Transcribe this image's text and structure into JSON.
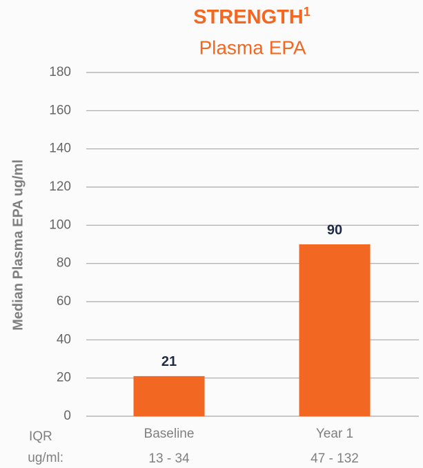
{
  "chart_data": {
    "type": "bar",
    "title": "STRENGTH",
    "title_superscript": "1",
    "subtitle": "Plasma EPA",
    "y_label": "Median Plasma EPA ug/ml",
    "categories": [
      "Baseline",
      "Year 1"
    ],
    "values": [
      21,
      90
    ],
    "color": "#f26722",
    "ylim": [
      0,
      180
    ],
    "yticks": [
      0,
      20,
      40,
      60,
      80,
      100,
      120,
      140,
      160,
      180
    ],
    "grid": true,
    "iqr_label": [
      "IQR",
      "ug/ml:"
    ],
    "iqr_ranges": [
      "13 - 34",
      "47 - 132"
    ]
  }
}
